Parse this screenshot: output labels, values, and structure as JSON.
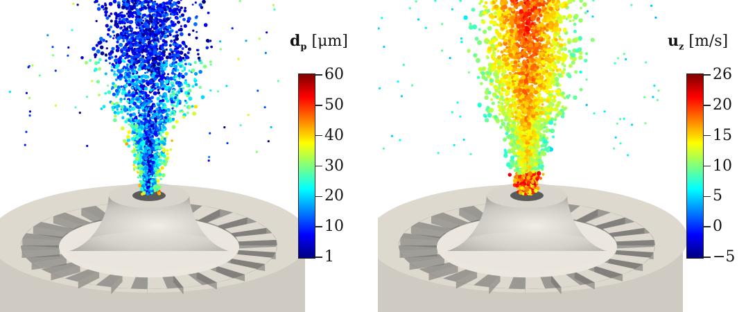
{
  "panels": [
    {
      "colorbar": {
        "symbol": "d",
        "subscript": "p",
        "unit": "[μm]",
        "ticks": [
          "60",
          "50",
          "40",
          "30",
          "20",
          "10",
          "1"
        ],
        "min": 1,
        "max": 60
      },
      "particle_coloring": "diameter"
    },
    {
      "colorbar": {
        "symbol": "u",
        "subscript": "z",
        "unit": "[m/s]",
        "ticks": [
          "26",
          "20",
          "15",
          "10",
          "5",
          "0",
          "−5"
        ],
        "min": -5,
        "max": 26
      },
      "particle_coloring": "axial-velocity"
    }
  ],
  "colormap": [
    "#00007f",
    "#0000ff",
    "#007fff",
    "#00ffff",
    "#7fff7f",
    "#ffff00",
    "#ff7f00",
    "#ff0000",
    "#7f0000"
  ],
  "colors": {
    "geometry": "#ddd9cf",
    "slot_shadow": "#8e8e8e",
    "background": "#ffffff"
  }
}
